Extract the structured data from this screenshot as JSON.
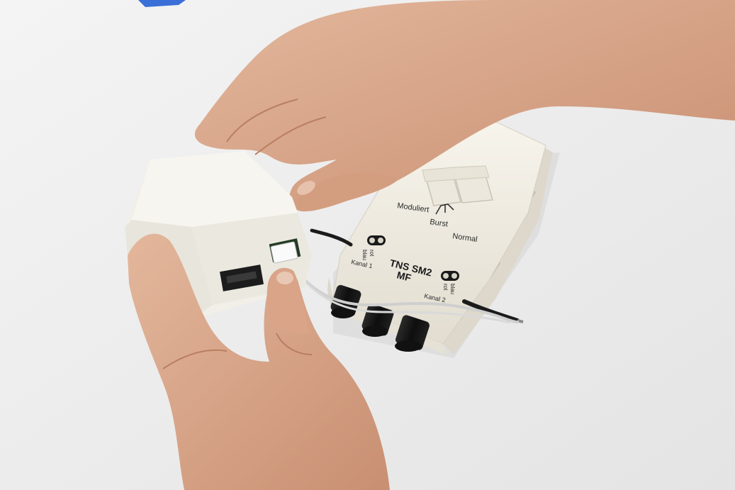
{
  "device": {
    "model_line1": "TNS SM2",
    "model_line2": "MF",
    "mode_labels": {
      "modulated": "Moduliert",
      "burst": "Burst",
      "normal": "Normal"
    },
    "channel1": {
      "label": "Kanal 1",
      "color_1": "rot",
      "color_2": "blau"
    },
    "channel2": {
      "label": "Kanal 2",
      "color_1": "rot",
      "color_2": "blau"
    }
  },
  "colors": {
    "background": "#ececec",
    "device_body": "#f2efe6",
    "skin": "#d9a98c",
    "tape": "#3a6fd8",
    "knob": "#161616",
    "cable": "#d0d0d0"
  }
}
